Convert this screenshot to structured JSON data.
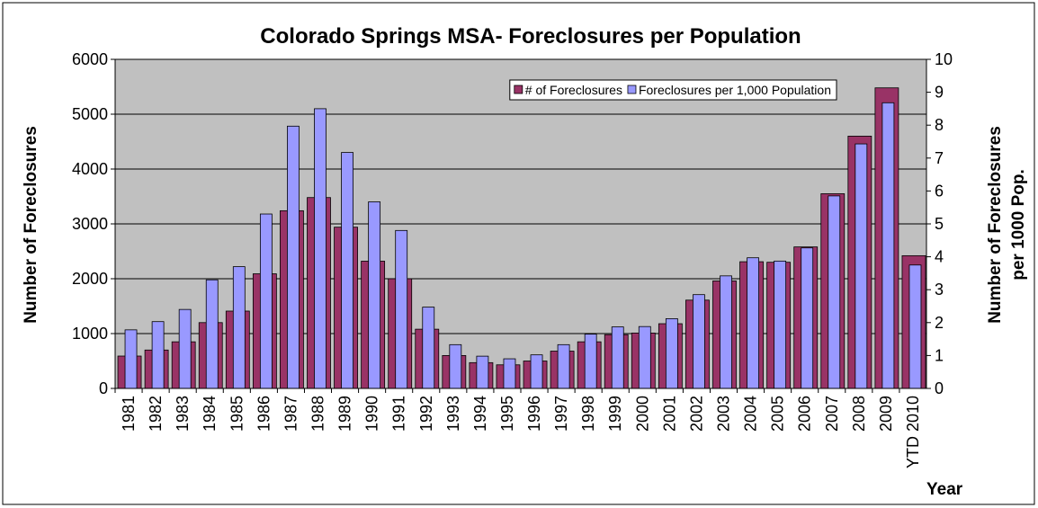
{
  "chart_data": {
    "type": "bar",
    "title": "Colorado Springs MSA- Foreclosures per Population",
    "x_label": "Year",
    "y_label": "Number of Foreclosures",
    "y2_label": [
      "Number of Foreclosures",
      "per 1000 Pop."
    ],
    "categories": [
      "1981",
      "1982",
      "1983",
      "1984",
      "1985",
      "1986",
      "1987",
      "1988",
      "1989",
      "1990",
      "1991",
      "1992",
      "1993",
      "1994",
      "1995",
      "1996",
      "1997",
      "1998",
      "1999",
      "2000",
      "2001",
      "2002",
      "2003",
      "2004",
      "2005",
      "2006",
      "2007",
      "2008",
      "2009",
      "YTD 2010"
    ],
    "series": [
      {
        "name": "# of Foreclosures",
        "color": "#993366",
        "axis": "y",
        "values": [
          590,
          700,
          850,
          1200,
          1410,
          2090,
          3240,
          3480,
          2940,
          2320,
          2000,
          1080,
          600,
          470,
          430,
          500,
          680,
          850,
          980,
          1010,
          1180,
          1610,
          1960,
          2310,
          2300,
          2580,
          3550,
          4600,
          5480,
          2420
        ]
      },
      {
        "name": "Foreclosures per 1,000 Population",
        "color": "#9999ff",
        "axis": "y2",
        "values": [
          1.78,
          2.03,
          2.4,
          3.3,
          3.7,
          5.3,
          7.97,
          8.5,
          7.17,
          5.67,
          4.8,
          2.47,
          1.33,
          0.98,
          0.9,
          1.02,
          1.33,
          1.65,
          1.87,
          1.88,
          2.12,
          2.85,
          3.42,
          3.97,
          3.87,
          4.27,
          5.85,
          7.43,
          8.68,
          3.75
        ]
      }
    ],
    "ylim": [
      0,
      6000
    ],
    "yticks": [
      0,
      1000,
      2000,
      3000,
      4000,
      5000,
      6000
    ],
    "y2lim": [
      0,
      10
    ],
    "y2ticks": [
      0,
      1,
      2,
      3,
      4,
      5,
      6,
      7,
      8,
      9,
      10
    ],
    "grid": true,
    "legend": "top-right"
  }
}
